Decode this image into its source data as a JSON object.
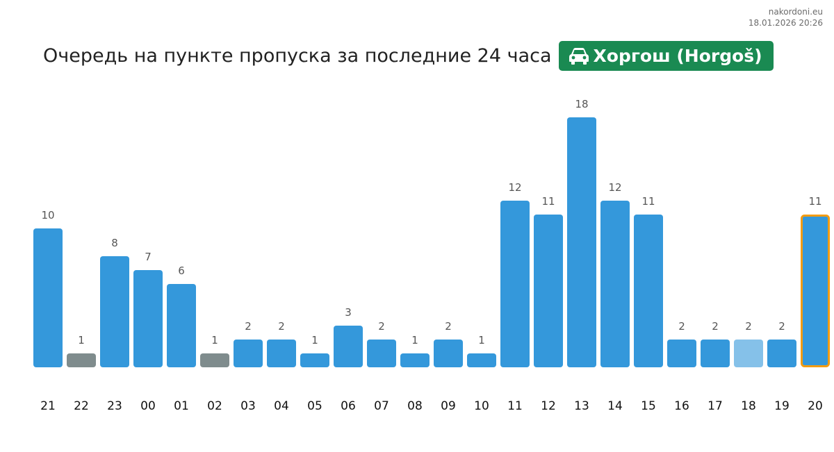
{
  "site": "nakordoni.eu",
  "timestamp": "18.01.2026 20:26",
  "title": "Очередь на пункте пропуска за последние 24 часа",
  "crossing": {
    "name": "Хоргош (Horgoš)",
    "icon": "car-icon",
    "color": "#1a8a52"
  },
  "colors": {
    "bar": "#3498db",
    "bar_gray": "#7f8c8d",
    "bar_light": "#85c1e9",
    "highlight_border": "#f39c12"
  },
  "chart_data": {
    "type": "bar",
    "title": "Очередь на пункте пропуска за последние 24 часа",
    "xlabel": "",
    "ylabel": "",
    "categories": [
      "21",
      "22",
      "23",
      "00",
      "01",
      "02",
      "03",
      "04",
      "05",
      "06",
      "07",
      "08",
      "09",
      "10",
      "11",
      "12",
      "13",
      "14",
      "15",
      "16",
      "17",
      "18",
      "19",
      "20"
    ],
    "values": [
      10,
      1,
      8,
      7,
      6,
      1,
      2,
      2,
      1,
      3,
      2,
      1,
      2,
      1,
      12,
      11,
      18,
      12,
      11,
      2,
      2,
      2,
      2,
      11
    ],
    "bar_styles": [
      "normal",
      "gray",
      "normal",
      "normal",
      "normal",
      "gray",
      "normal",
      "normal",
      "normal",
      "normal",
      "normal",
      "normal",
      "normal",
      "normal",
      "normal",
      "normal",
      "normal",
      "normal",
      "normal",
      "normal",
      "normal",
      "light",
      "normal",
      "highlight"
    ],
    "ylim": [
      0,
      18
    ],
    "grid": false,
    "data_labels": true
  }
}
